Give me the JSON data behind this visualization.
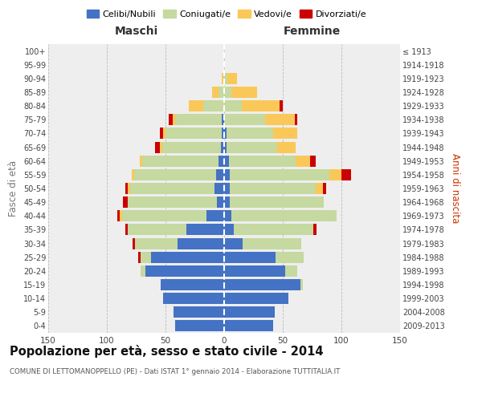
{
  "age_groups": [
    "0-4",
    "5-9",
    "10-14",
    "15-19",
    "20-24",
    "25-29",
    "30-34",
    "35-39",
    "40-44",
    "45-49",
    "50-54",
    "55-59",
    "60-64",
    "65-69",
    "70-74",
    "75-79",
    "80-84",
    "85-89",
    "90-94",
    "95-99",
    "100+"
  ],
  "birth_years": [
    "2009-2013",
    "2004-2008",
    "1999-2003",
    "1994-1998",
    "1989-1993",
    "1984-1988",
    "1979-1983",
    "1974-1978",
    "1969-1973",
    "1964-1968",
    "1959-1963",
    "1954-1958",
    "1949-1953",
    "1944-1948",
    "1939-1943",
    "1934-1938",
    "1929-1933",
    "1924-1928",
    "1919-1923",
    "1914-1918",
    "≤ 1913"
  ],
  "males_celibi": [
    42,
    43,
    52,
    54,
    67,
    62,
    40,
    32,
    15,
    6,
    8,
    7,
    5,
    3,
    2,
    2,
    0,
    0,
    0,
    0,
    0
  ],
  "males_coniugati": [
    0,
    0,
    0,
    0,
    4,
    9,
    36,
    50,
    72,
    76,
    72,
    70,
    65,
    50,
    48,
    40,
    18,
    5,
    1,
    0,
    0
  ],
  "males_vedovi": [
    0,
    0,
    0,
    0,
    0,
    0,
    0,
    0,
    2,
    0,
    2,
    2,
    2,
    2,
    2,
    2,
    12,
    5,
    1,
    0,
    0
  ],
  "males_divorziati": [
    0,
    0,
    0,
    0,
    0,
    2,
    2,
    2,
    2,
    4,
    2,
    0,
    0,
    4,
    3,
    3,
    0,
    0,
    0,
    0,
    0
  ],
  "females_nubili": [
    42,
    43,
    55,
    65,
    52,
    44,
    16,
    8,
    6,
    5,
    5,
    5,
    4,
    2,
    2,
    0,
    0,
    0,
    0,
    0,
    0
  ],
  "females_coniugate": [
    0,
    0,
    0,
    2,
    10,
    24,
    50,
    68,
    90,
    80,
    73,
    85,
    57,
    43,
    40,
    35,
    15,
    6,
    3,
    1,
    0
  ],
  "females_vedove": [
    0,
    0,
    0,
    0,
    0,
    0,
    0,
    0,
    0,
    0,
    6,
    10,
    12,
    16,
    20,
    25,
    32,
    22,
    8,
    0,
    0
  ],
  "females_divorziate": [
    0,
    0,
    0,
    0,
    0,
    0,
    0,
    3,
    0,
    0,
    3,
    8,
    5,
    0,
    0,
    2,
    3,
    0,
    0,
    0,
    0
  ],
  "colors_celibi": "#4472C4",
  "colors_coniugati": "#C5D9A0",
  "colors_vedovi": "#FAC858",
  "colors_divorziati": "#CC0000",
  "title": "Popolazione per età, sesso e stato civile - 2014",
  "subtitle": "COMUNE DI LETTOMANOPPELLO (PE) - Dati ISTAT 1° gennaio 2014 - Elaborazione TUTTITALIA.IT",
  "label_maschi": "Maschi",
  "label_femmine": "Femmine",
  "label_fasce": "Fasce di età",
  "label_anni": "Anni di nascita",
  "legend_labels": [
    "Celibi/Nubili",
    "Coniugati/e",
    "Vedovi/e",
    "Divorziati/e"
  ],
  "xlim": 150,
  "bg_color": "#ffffff",
  "plot_bg": "#eeeeee",
  "grid_color": "#bbbbbb"
}
